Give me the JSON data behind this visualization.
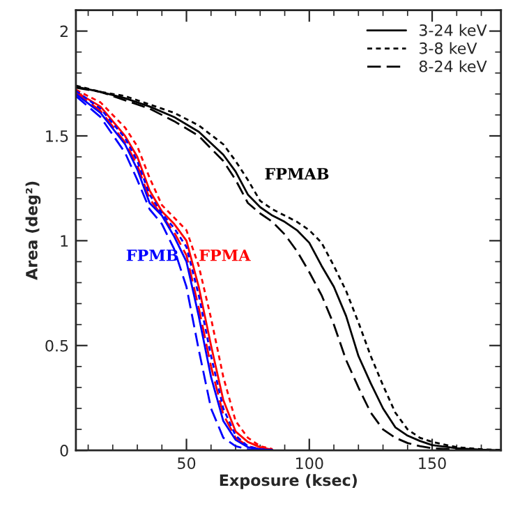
{
  "chart_data": {
    "type": "line",
    "xlabel": "Exposure (ksec)",
    "ylabel": "Area (deg²)",
    "xlim": [
      5,
      178
    ],
    "ylim": [
      0,
      2.1
    ],
    "xticks": [
      50,
      100,
      150
    ],
    "yticks": [
      0,
      0.5,
      1,
      1.5,
      2
    ],
    "legend": "top right",
    "grid": false,
    "series": [
      {
        "name": "3-24 keV",
        "color": "#000000",
        "line_style": "solid",
        "x": [
          5,
          15,
          25,
          35,
          45,
          55,
          65,
          70,
          75,
          80,
          85,
          90,
          95,
          100,
          105,
          110,
          115,
          120,
          125,
          130,
          135,
          140,
          145,
          150,
          160,
          170,
          178
        ],
        "values": [
          1.735,
          1.71,
          1.68,
          1.64,
          1.59,
          1.52,
          1.41,
          1.33,
          1.22,
          1.16,
          1.12,
          1.09,
          1.05,
          0.99,
          0.88,
          0.78,
          0.64,
          0.45,
          0.32,
          0.2,
          0.11,
          0.07,
          0.045,
          0.025,
          0.01,
          0.003,
          0
        ]
      },
      {
        "name": "3-8 keV",
        "color": "#000000",
        "line_style": "dotted",
        "x": [
          5,
          15,
          25,
          35,
          45,
          55,
          65,
          70,
          75,
          80,
          85,
          90,
          95,
          100,
          105,
          110,
          115,
          120,
          125,
          130,
          135,
          140,
          145,
          150,
          160,
          170,
          178
        ],
        "values": [
          1.74,
          1.71,
          1.69,
          1.65,
          1.61,
          1.55,
          1.46,
          1.38,
          1.29,
          1.19,
          1.15,
          1.12,
          1.09,
          1.05,
          0.99,
          0.88,
          0.76,
          0.61,
          0.45,
          0.31,
          0.18,
          0.1,
          0.06,
          0.04,
          0.015,
          0.005,
          0.002
        ]
      },
      {
        "name": "8-24 keV",
        "color": "#000000",
        "line_style": "dashed",
        "x": [
          5,
          15,
          25,
          35,
          45,
          55,
          65,
          70,
          75,
          80,
          85,
          90,
          95,
          100,
          105,
          110,
          115,
          120,
          125,
          130,
          135,
          140,
          145,
          150,
          160,
          170
        ],
        "values": [
          1.73,
          1.71,
          1.67,
          1.63,
          1.57,
          1.5,
          1.38,
          1.29,
          1.18,
          1.13,
          1.09,
          1.03,
          0.95,
          0.85,
          0.74,
          0.6,
          0.43,
          0.3,
          0.18,
          0.1,
          0.06,
          0.035,
          0.02,
          0.01,
          0.003,
          0
        ]
      },
      {
        "color": "#ff0000",
        "line_style": "solid",
        "x": [
          5,
          15,
          25,
          30,
          35,
          40,
          45,
          50,
          55,
          60,
          65,
          70,
          75,
          80,
          85
        ],
        "values": [
          1.71,
          1.64,
          1.5,
          1.4,
          1.24,
          1.14,
          1.08,
          1.0,
          0.78,
          0.5,
          0.24,
          0.09,
          0.04,
          0.015,
          0.003
        ]
      },
      {
        "color": "#ff0000",
        "line_style": "dotted",
        "x": [
          5,
          15,
          25,
          30,
          35,
          40,
          45,
          50,
          55,
          60,
          65,
          70,
          75,
          80,
          85
        ],
        "values": [
          1.72,
          1.66,
          1.54,
          1.45,
          1.3,
          1.17,
          1.11,
          1.05,
          0.88,
          0.63,
          0.35,
          0.14,
          0.06,
          0.02,
          0.006
        ]
      },
      {
        "color": "#ff0000",
        "line_style": "dashed",
        "x": [
          5,
          15,
          25,
          30,
          35,
          40,
          45,
          50,
          55,
          60,
          65,
          70,
          75,
          80,
          85
        ],
        "values": [
          1.705,
          1.62,
          1.47,
          1.36,
          1.2,
          1.12,
          1.04,
          0.93,
          0.68,
          0.4,
          0.17,
          0.06,
          0.02,
          0.005,
          0
        ]
      },
      {
        "color": "#0000ff",
        "line_style": "solid",
        "x": [
          5,
          15,
          25,
          30,
          35,
          40,
          45,
          50,
          55,
          60,
          65,
          70,
          75,
          80,
          85
        ],
        "values": [
          1.7,
          1.61,
          1.46,
          1.34,
          1.18,
          1.12,
          1.02,
          0.9,
          0.64,
          0.35,
          0.14,
          0.05,
          0.015,
          0.005,
          0.001
        ]
      },
      {
        "color": "#0000ff",
        "line_style": "dotted",
        "x": [
          5,
          15,
          25,
          30,
          35,
          40,
          45,
          50,
          55,
          60,
          65,
          70,
          75,
          80,
          85
        ],
        "values": [
          1.715,
          1.63,
          1.49,
          1.38,
          1.22,
          1.13,
          1.06,
          0.97,
          0.74,
          0.45,
          0.2,
          0.07,
          0.02,
          0.005,
          0.002
        ]
      },
      {
        "color": "#0000ff",
        "line_style": "dashed",
        "x": [
          5,
          15,
          25,
          30,
          35,
          40,
          45,
          50,
          55,
          60,
          65,
          70,
          75,
          80
        ],
        "values": [
          1.69,
          1.59,
          1.42,
          1.29,
          1.15,
          1.08,
          0.96,
          0.78,
          0.48,
          0.2,
          0.06,
          0.02,
          0.005,
          0
        ]
      }
    ],
    "annotations": [
      "FPMAB",
      "FPMA",
      "FPMB"
    ]
  }
}
